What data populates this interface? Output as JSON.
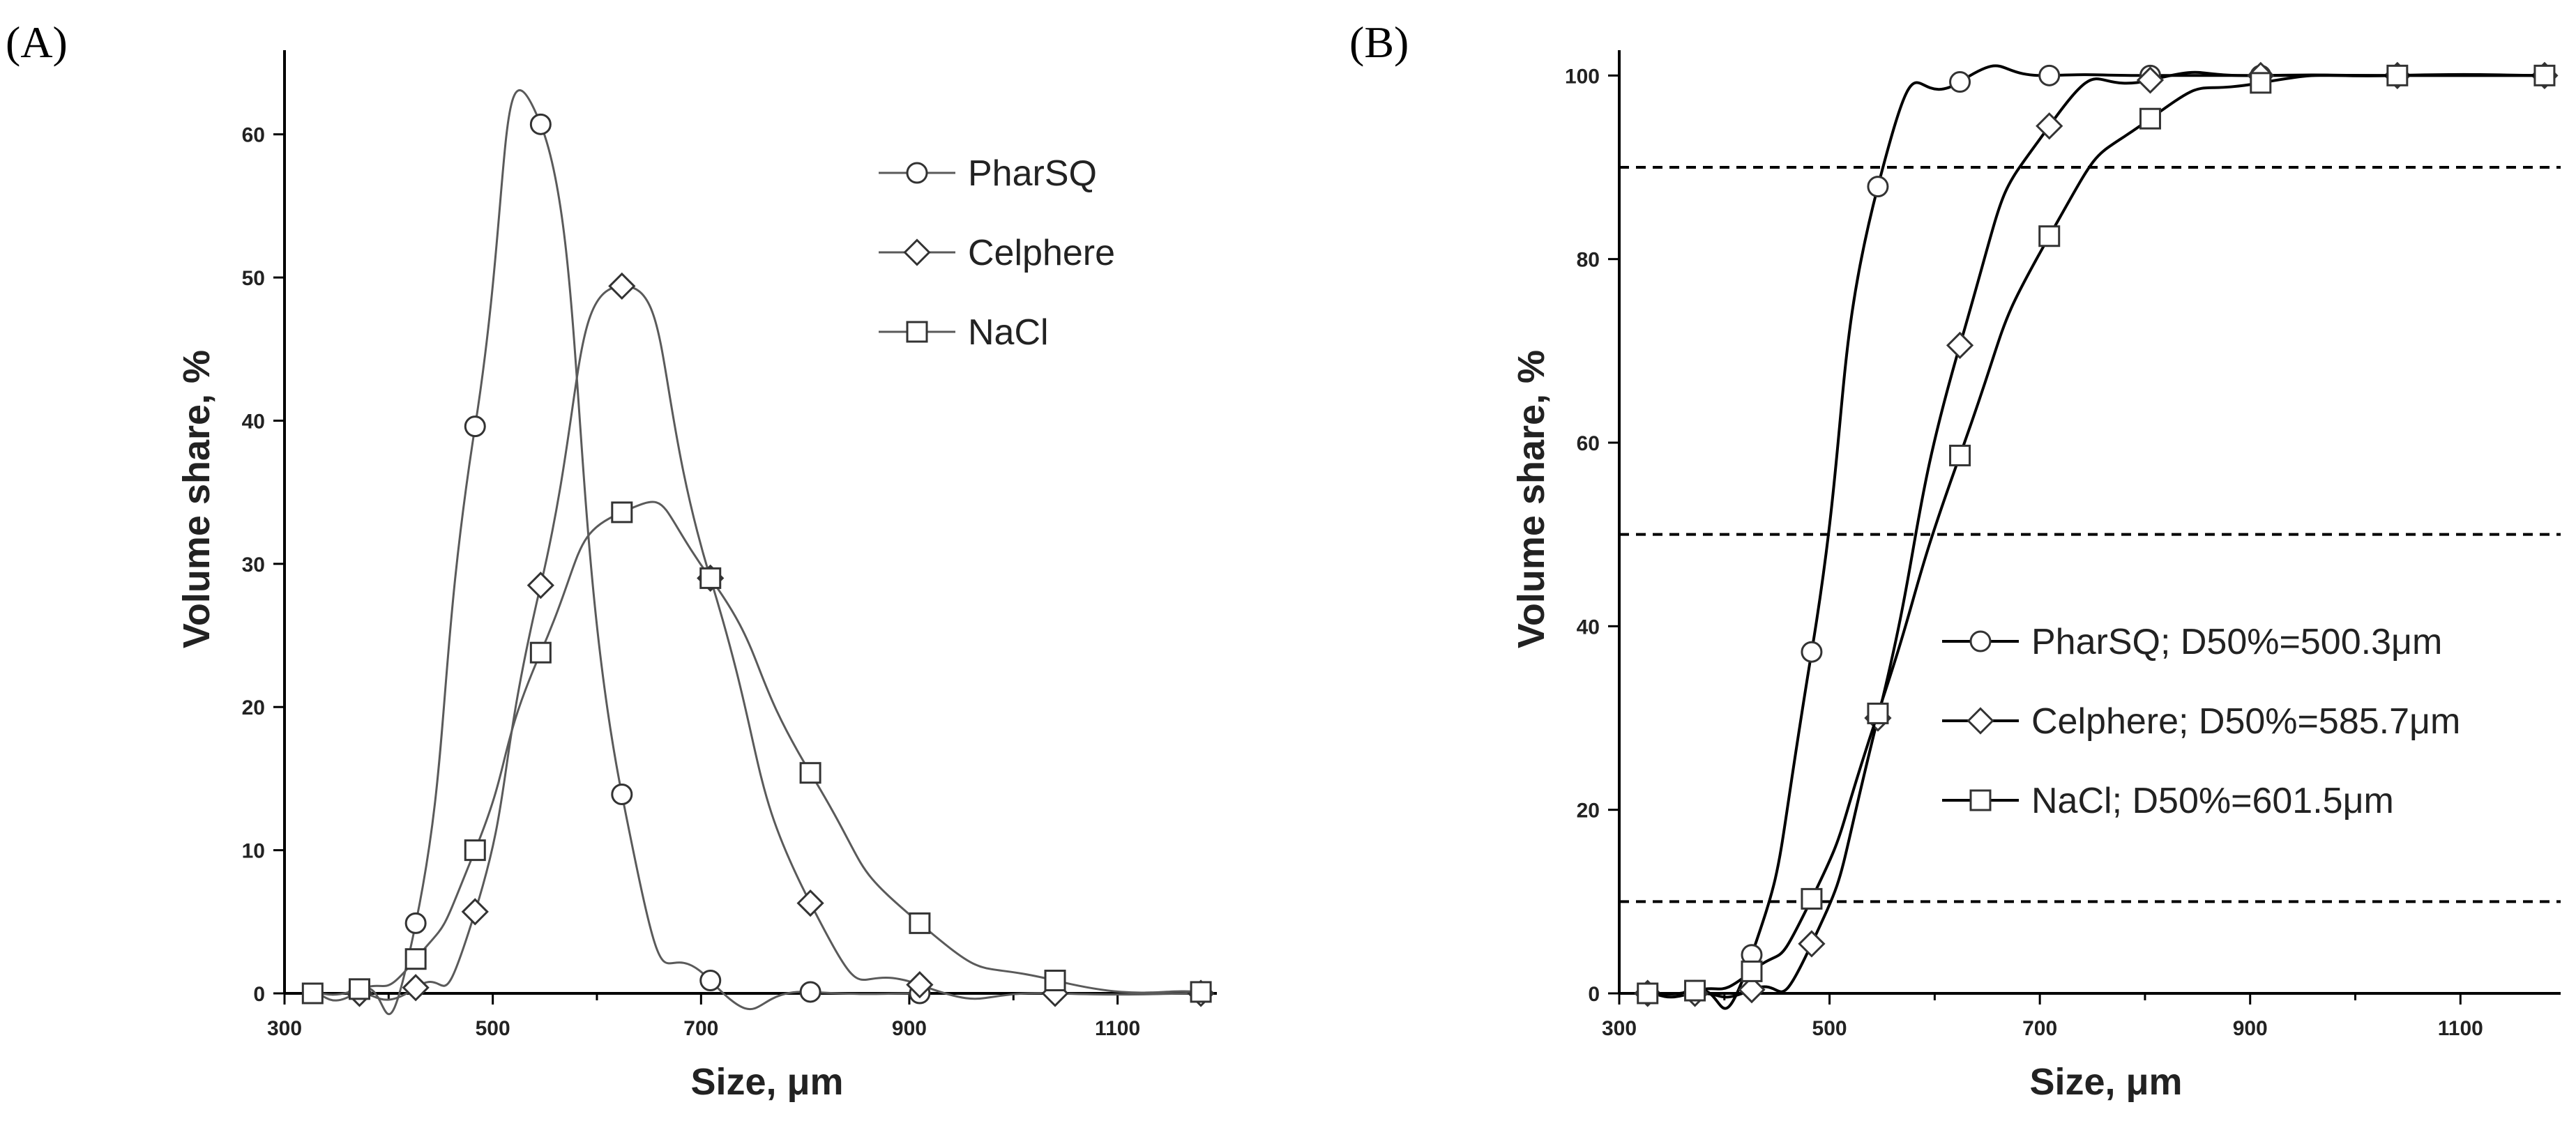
{
  "chart_data": [
    {
      "panel": "(A)",
      "type": "line",
      "title": "",
      "xlabel": "Size, μm",
      "ylabel": "Volume share, %",
      "xlim": [
        300,
        1200
      ],
      "ylim": [
        0,
        65
      ],
      "xticks": [
        300,
        500,
        700,
        900,
        1100
      ],
      "yticks": [
        0,
        10,
        20,
        30,
        40,
        50,
        60
      ],
      "grid": false,
      "legend_position": "top-right",
      "series": [
        {
          "name": "PharSQ",
          "marker": "circle",
          "color": "#5a5a5a",
          "x": [
            327,
            372,
            426,
            483,
            546,
            624,
            709,
            805,
            910
          ],
          "y": [
            0,
            0.2,
            4.9,
            39.6,
            60.7,
            13.9,
            0.9,
            0.1,
            0
          ]
        },
        {
          "name": "Celphere",
          "marker": "diamond",
          "color": "#5a5a5a",
          "x": [
            372,
            426,
            483,
            546,
            624,
            709,
            805,
            910,
            1040,
            1180
          ],
          "y": [
            0,
            0.4,
            5.7,
            28.5,
            49.4,
            29,
            6.3,
            0.6,
            0,
            0
          ]
        },
        {
          "name": "NaCl",
          "marker": "square",
          "color": "#5a5a5a",
          "x": [
            327,
            372,
            426,
            483,
            546,
            624,
            709,
            805,
            910,
            1040,
            1180
          ],
          "y": [
            0,
            0.3,
            2.4,
            10,
            23.8,
            33.6,
            29,
            15.4,
            4.9,
            0.9,
            0.1
          ]
        }
      ]
    },
    {
      "panel": "(B)",
      "type": "line",
      "title": "",
      "xlabel": "Size, μm",
      "ylabel": "Volume share, %",
      "xlim": [
        300,
        1200
      ],
      "ylim": [
        0,
        102
      ],
      "xticks": [
        300,
        500,
        700,
        900,
        1100
      ],
      "yticks": [
        0,
        20,
        40,
        60,
        80,
        100
      ],
      "grid": false,
      "reference_lines": [
        10,
        50,
        90
      ],
      "legend_position": "center-right",
      "series": [
        {
          "name": "PharSQ; D50%=500.3μm",
          "marker": "circle",
          "color": "#000000",
          "x": [
            327,
            372,
            426,
            483,
            546,
            624,
            709,
            805,
            910,
            1040,
            1180
          ],
          "y": [
            0,
            0.2,
            4.2,
            37.2,
            87.9,
            99.3,
            100,
            100,
            100,
            100,
            100
          ]
        },
        {
          "name": "Celphere; D50%=585.7μm",
          "marker": "diamond",
          "color": "#000000",
          "x": [
            327,
            372,
            426,
            483,
            546,
            624,
            709,
            805,
            910,
            1040,
            1180
          ],
          "y": [
            0,
            0,
            0.4,
            5.4,
            30,
            70.6,
            94.5,
            99.5,
            100,
            100,
            100
          ]
        },
        {
          "name": "NaCl; D50%=601.5μm",
          "marker": "square",
          "color": "#000000",
          "x": [
            327,
            372,
            426,
            483,
            546,
            624,
            709,
            805,
            910,
            1040,
            1180
          ],
          "y": [
            0,
            0.3,
            2.4,
            10.3,
            30.5,
            58.6,
            82.5,
            95.3,
            99.2,
            100,
            100
          ]
        }
      ]
    }
  ]
}
